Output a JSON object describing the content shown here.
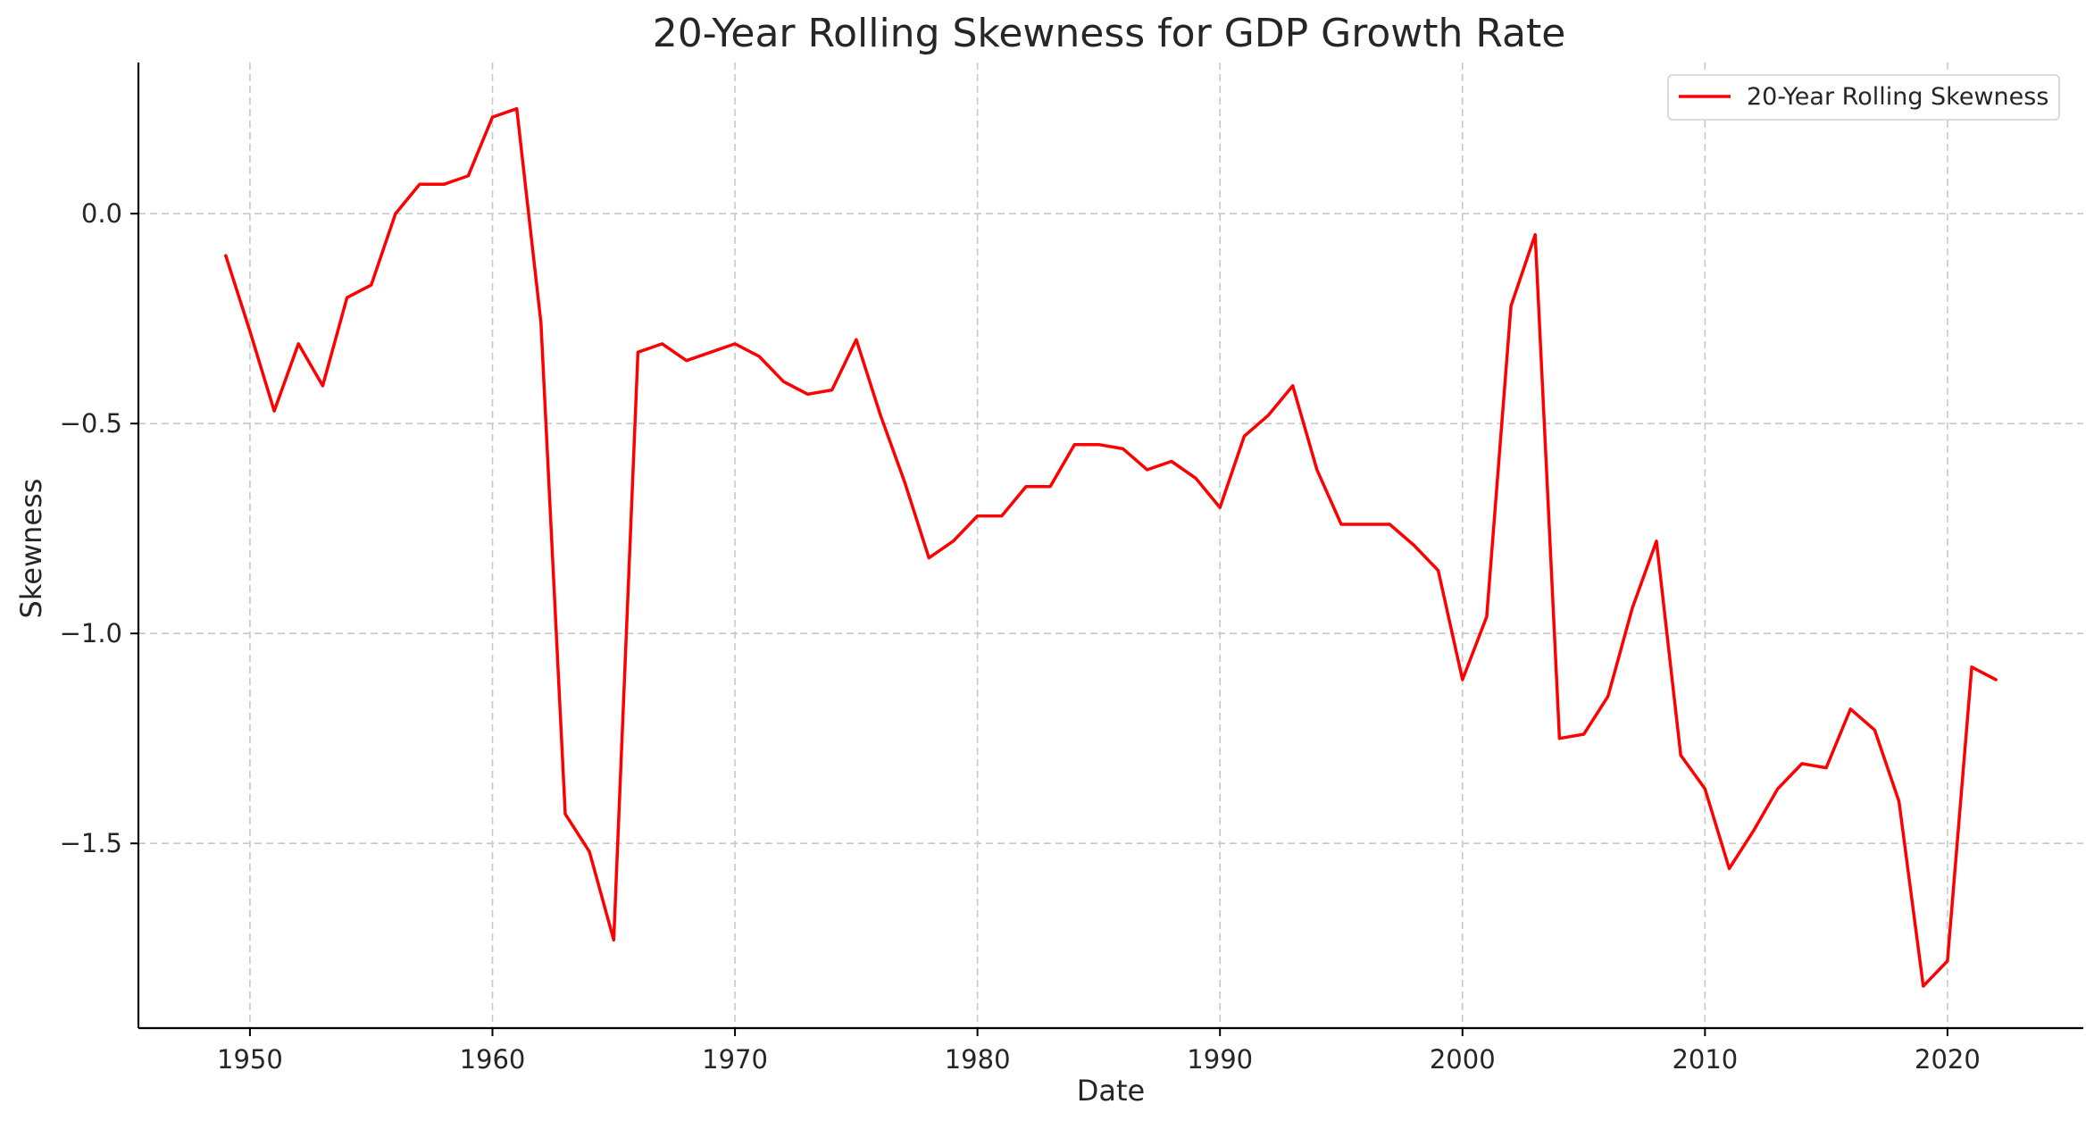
{
  "chart_data": {
    "type": "line",
    "title": "20-Year Rolling Skewness for GDP Growth Rate",
    "xlabel": "Date",
    "ylabel": "Skewness",
    "xlim": [
      1945.4,
      2025.6
    ],
    "ylim": [
      -1.94,
      0.36
    ],
    "x_ticks": [
      1950,
      1960,
      1970,
      1980,
      1990,
      2000,
      2010,
      2020
    ],
    "y_ticks": [
      0.0,
      -0.5,
      -1.0,
      -1.5
    ],
    "y_tick_labels": [
      "0.0",
      "−0.5",
      "−1.0",
      "−1.5"
    ],
    "grid": true,
    "legend_position": "top-right",
    "line_color": "#ff0000",
    "series": [
      {
        "name": "20-Year Rolling Skewness",
        "color": "#ff0000",
        "x": [
          1949,
          1950,
          1951,
          1952,
          1953,
          1954,
          1955,
          1956,
          1957,
          1958,
          1959,
          1960,
          1961,
          1962,
          1963,
          1964,
          1965,
          1966,
          1967,
          1968,
          1969,
          1970,
          1971,
          1972,
          1973,
          1974,
          1975,
          1976,
          1977,
          1978,
          1979,
          1980,
          1981,
          1982,
          1983,
          1984,
          1985,
          1986,
          1987,
          1988,
          1989,
          1990,
          1991,
          1992,
          1993,
          1994,
          1995,
          1996,
          1997,
          1998,
          1999,
          2000,
          2001,
          2002,
          2003,
          2004,
          2005,
          2006,
          2007,
          2008,
          2009,
          2010,
          2011,
          2012,
          2013,
          2014,
          2015,
          2016,
          2017,
          2018,
          2019,
          2020,
          2021,
          2022
        ],
        "y": [
          -0.1,
          -0.28,
          -0.47,
          -0.31,
          -0.41,
          -0.2,
          -0.17,
          0.0,
          0.07,
          0.07,
          0.09,
          0.23,
          0.25,
          -0.26,
          -1.43,
          -1.52,
          -1.73,
          -0.33,
          -0.31,
          -0.35,
          -0.33,
          -0.31,
          -0.34,
          -0.4,
          -0.43,
          -0.42,
          -0.3,
          -0.48,
          -0.64,
          -0.82,
          -0.78,
          -0.72,
          -0.72,
          -0.65,
          -0.65,
          -0.55,
          -0.55,
          -0.56,
          -0.61,
          -0.59,
          -0.63,
          -0.7,
          -0.53,
          -0.48,
          -0.41,
          -0.61,
          -0.74,
          -0.74,
          -0.74,
          -0.79,
          -0.85,
          -1.11,
          -0.96,
          -0.22,
          -0.05,
          -1.25,
          -1.24,
          -1.15,
          -0.94,
          -0.78,
          -1.29,
          -1.37,
          -1.56,
          -1.47,
          -1.37,
          -1.31,
          -1.32,
          -1.18,
          -1.23,
          -1.4,
          -1.84,
          -1.78,
          -1.08,
          -1.11
        ]
      }
    ]
  }
}
